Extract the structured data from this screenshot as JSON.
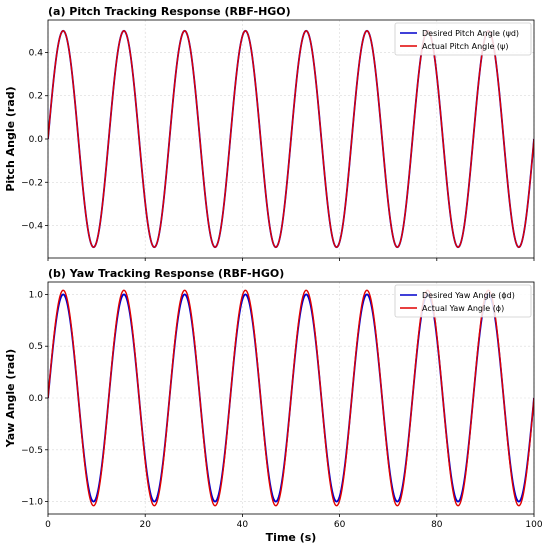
{
  "chart_data": [
    {
      "type": "line",
      "title": "(a) Pitch Tracking Response (RBF-HGO)",
      "xlabel": "",
      "ylabel": "Pitch Angle (rad)",
      "xlim": [
        0,
        100
      ],
      "ylim": [
        -0.55,
        0.55
      ],
      "xticks": [
        0,
        20,
        40,
        60,
        80,
        100
      ],
      "yticks": [
        -0.4,
        -0.2,
        0.0,
        0.2,
        0.4
      ],
      "xtick_labels": [
        "",
        "",
        "",
        "",
        "",
        ""
      ],
      "ytick_labels": [
        "−0.4",
        "−0.2",
        "0.0",
        "0.2",
        "0.4"
      ],
      "grid": true,
      "legend_position": "top-right",
      "series": [
        {
          "name": "Desired Pitch Angle (ψ_d)",
          "legend_label": "Desired Pitch Angle (ψd)",
          "color": "#0000cc",
          "function": "sine",
          "amplitude": 0.5,
          "period": 12.5,
          "phase": 0
        },
        {
          "name": "Actual Pitch Angle (ψ)",
          "legend_label": "Actual Pitch Angle (ψ)",
          "color": "#e00000",
          "function": "sine",
          "amplitude": 0.5,
          "period": 12.5,
          "phase": 0
        }
      ]
    },
    {
      "type": "line",
      "title": "(b) Yaw Tracking Response (RBF-HGO)",
      "xlabel": "Time (s)",
      "ylabel": "Yaw Angle (rad)",
      "xlim": [
        0,
        100
      ],
      "ylim": [
        -1.12,
        1.12
      ],
      "xticks": [
        0,
        20,
        40,
        60,
        80,
        100
      ],
      "yticks": [
        -1.0,
        -0.5,
        0.0,
        0.5,
        1.0
      ],
      "xtick_labels": [
        "0",
        "20",
        "40",
        "60",
        "80",
        "100"
      ],
      "ytick_labels": [
        "−1.0",
        "−0.5",
        "0.0",
        "0.5",
        "1.0"
      ],
      "grid": true,
      "legend_position": "top-right",
      "series": [
        {
          "name": "Desired Yaw Angle (ϕ_d)",
          "legend_label": "Desired Yaw Angle (ϕd)",
          "color": "#0000cc",
          "function": "sine",
          "amplitude": 1.0,
          "period": 12.5,
          "phase": 0
        },
        {
          "name": "Actual Yaw Angle (ϕ)",
          "legend_label": "Actual Yaw Angle (ϕ)",
          "color": "#e00000",
          "function": "sine",
          "amplitude": 1.04,
          "period": 12.5,
          "phase": 0
        }
      ]
    }
  ]
}
